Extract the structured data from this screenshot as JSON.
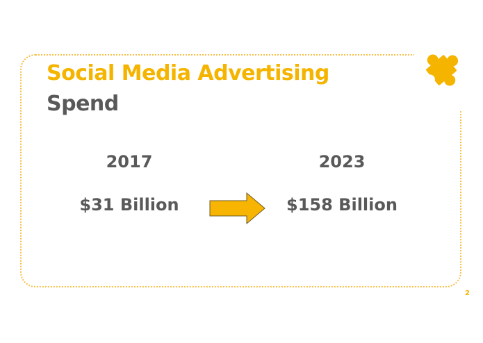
{
  "title": {
    "line1": "Social Media Advertising",
    "line2": "Spend"
  },
  "comparison": {
    "from": {
      "year": "2017",
      "value": "$31 Billion"
    },
    "to": {
      "year": "2023",
      "value": "$158 Billion"
    }
  },
  "page_number": "2",
  "icons": {
    "puzzle": "puzzle-piece-icon",
    "arrow": "arrow-right-icon"
  },
  "colors": {
    "accent": "#f5b400",
    "text": "#595959",
    "arrow_fill": "#f7b400",
    "arrow_stroke": "#6b5a2a"
  }
}
